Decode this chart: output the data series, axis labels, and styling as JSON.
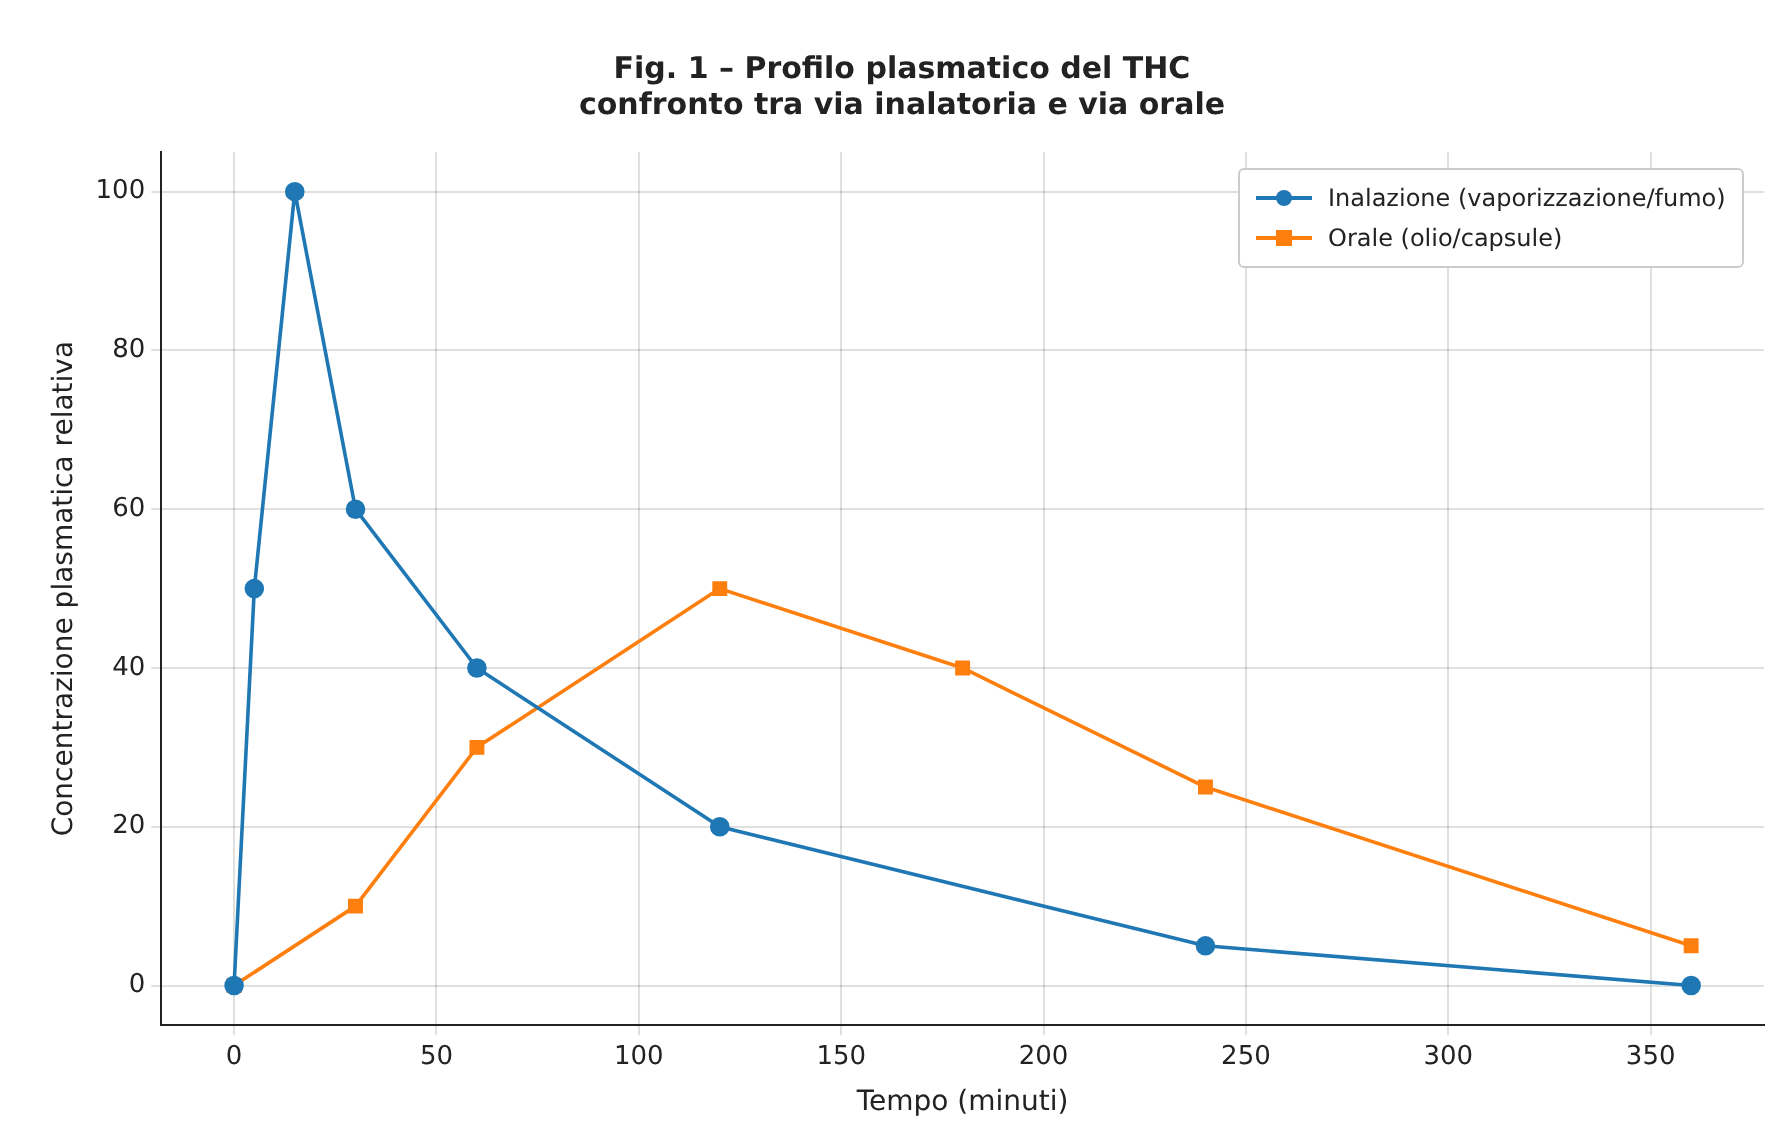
{
  "chart_data": {
    "type": "line",
    "title": "Fig. 1 – Profilo plasmatico del THC\nconfronto tra via inalatoria e via orale",
    "xlabel": "Tempo (minuti)",
    "ylabel": "Concentrazione plasmatica relativa",
    "series": [
      {
        "name": "Inalazione (vaporizzazione/fumo)",
        "color": "#1f77b4",
        "marker": "circle",
        "x": [
          0,
          5,
          15,
          30,
          60,
          120,
          240,
          360
        ],
        "values": [
          0,
          50,
          100,
          60,
          40,
          20,
          5,
          0
        ]
      },
      {
        "name": "Orale (olio/capsule)",
        "color": "#ff7f0e",
        "marker": "square",
        "x": [
          0,
          30,
          60,
          120,
          180,
          240,
          360
        ],
        "values": [
          0,
          10,
          30,
          50,
          40,
          25,
          5
        ]
      }
    ],
    "xlim": [
      -18,
      378
    ],
    "xticks": [
      0,
      50,
      100,
      150,
      200,
      250,
      300,
      350
    ],
    "ylim": [
      -5,
      105
    ],
    "yticks": [
      0,
      20,
      40,
      60,
      80,
      100
    ],
    "grid": true,
    "legend": "top right",
    "line_style": "solid"
  }
}
